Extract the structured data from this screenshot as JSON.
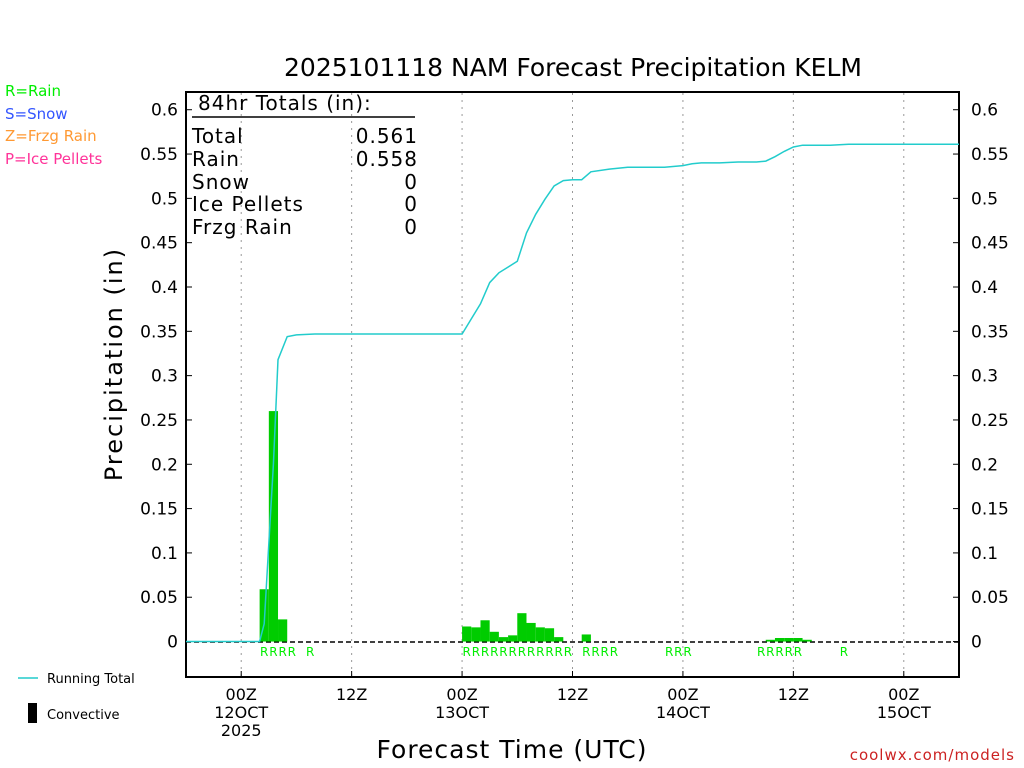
{
  "title": "2025101118 NAM Forecast Precipitation KELM",
  "ylabel": "Precipitation (in)",
  "xlabel": "Forecast Time (UTC)",
  "watermark": "coolwx.com/models",
  "legend_types": [
    {
      "text": "R=Rain",
      "color": "#00ee00"
    },
    {
      "text": "S=Snow",
      "color": "#3355ff"
    },
    {
      "text": "Z=Frzg Rain",
      "color": "#ff9933"
    },
    {
      "text": "P=Ice Pellets",
      "color": "#ff3399"
    }
  ],
  "legend_bottom": {
    "running_total": "Running Total",
    "convective": "Convective"
  },
  "totals": {
    "header": "84hr Totals (in):",
    "rows": [
      {
        "label": "Total",
        "value": "0.561"
      },
      {
        "label": "Rain",
        "value": "0.558"
      },
      {
        "label": "Snow",
        "value": "0"
      },
      {
        "label": "Ice Pellets",
        "value": "0"
      },
      {
        "label": "Frzg Rain",
        "value": "0"
      }
    ]
  },
  "colors": {
    "running_total": "#22cccc",
    "bars": "#00cc00",
    "ptype": "#00ee00",
    "watermark": "#cc2222"
  },
  "chart_data": {
    "type": "bar",
    "title": "2025101118 NAM Forecast Precipitation KELM",
    "xlabel": "Forecast Time (UTC)",
    "ylabel": "Precipitation (in)",
    "x_unit": "forecast hour",
    "xlim": [
      0,
      84
    ],
    "ylim": [
      -0.04,
      0.62
    ],
    "yticks": [
      "0",
      "0.05",
      "0.1",
      "0.15",
      "0.2",
      "0.25",
      "0.3",
      "0.35",
      "0.4",
      "0.45",
      "0.5",
      "0.55",
      "0.6"
    ],
    "xticks": [
      {
        "hour": 6,
        "lines": [
          "00Z",
          "12OCT",
          "2025"
        ]
      },
      {
        "hour": 18,
        "lines": [
          "12Z"
        ]
      },
      {
        "hour": 30,
        "lines": [
          "00Z",
          "13OCT"
        ]
      },
      {
        "hour": 42,
        "lines": [
          "12Z"
        ]
      },
      {
        "hour": 54,
        "lines": [
          "00Z",
          "14OCT"
        ]
      },
      {
        "hour": 66,
        "lines": [
          "12Z"
        ]
      },
      {
        "hour": 78,
        "lines": [
          "00Z",
          "15OCT"
        ]
      }
    ],
    "grid": "vertical dotted",
    "bars": [
      {
        "hour": 9,
        "value": 0.059
      },
      {
        "hour": 10,
        "value": 0.26
      },
      {
        "hour": 11,
        "value": 0.025
      },
      {
        "hour": 31,
        "value": 0.017
      },
      {
        "hour": 32,
        "value": 0.016
      },
      {
        "hour": 33,
        "value": 0.024
      },
      {
        "hour": 34,
        "value": 0.011
      },
      {
        "hour": 35,
        "value": 0.005
      },
      {
        "hour": 36,
        "value": 0.007
      },
      {
        "hour": 37,
        "value": 0.032
      },
      {
        "hour": 38,
        "value": 0.021
      },
      {
        "hour": 39,
        "value": 0.016
      },
      {
        "hour": 40,
        "value": 0.015
      },
      {
        "hour": 41,
        "value": 0.005
      },
      {
        "hour": 44,
        "value": 0.008
      },
      {
        "hour": 64,
        "value": 0.002
      },
      {
        "hour": 65,
        "value": 0.004
      },
      {
        "hour": 66,
        "value": 0.004
      },
      {
        "hour": 67,
        "value": 0.004
      },
      {
        "hour": 68,
        "value": 0.002
      }
    ],
    "running_total": {
      "x": [
        0,
        8,
        8.5,
        9.5,
        10,
        11,
        12,
        14,
        30,
        31,
        32,
        33,
        34,
        36,
        37,
        38,
        39,
        40,
        41,
        42,
        43,
        44,
        46,
        48,
        52,
        54,
        55,
        56,
        58,
        60,
        62,
        63,
        64,
        65,
        66,
        67,
        68,
        70,
        72,
        74,
        76,
        78,
        80,
        82,
        84
      ],
      "y": [
        0,
        0,
        0.02,
        0.2,
        0.318,
        0.344,
        0.346,
        0.347,
        0.347,
        0.364,
        0.381,
        0.405,
        0.416,
        0.429,
        0.461,
        0.482,
        0.499,
        0.514,
        0.52,
        0.521,
        0.521,
        0.53,
        0.533,
        0.535,
        0.535,
        0.537,
        0.539,
        0.54,
        0.54,
        0.541,
        0.541,
        0.542,
        0.547,
        0.553,
        0.558,
        0.56,
        0.56,
        0.56,
        0.561,
        0.561,
        0.561,
        0.561,
        0.561,
        0.561,
        0.561
      ]
    },
    "ptype_labels": [
      {
        "hour": 9,
        "text": "R"
      },
      {
        "hour": 10,
        "text": "R"
      },
      {
        "hour": 11,
        "text": "R"
      },
      {
        "hour": 12,
        "text": "R"
      },
      {
        "hour": 14,
        "text": "R"
      },
      {
        "hour": 31,
        "text": "R"
      },
      {
        "hour": 32,
        "text": "R"
      },
      {
        "hour": 33,
        "text": "R"
      },
      {
        "hour": 34,
        "text": "R"
      },
      {
        "hour": 35,
        "text": "R"
      },
      {
        "hour": 36,
        "text": "R"
      },
      {
        "hour": 37,
        "text": "R"
      },
      {
        "hour": 38,
        "text": "R"
      },
      {
        "hour": 39,
        "text": "R"
      },
      {
        "hour": 40,
        "text": "R"
      },
      {
        "hour": 41,
        "text": "R"
      },
      {
        "hour": 42,
        "text": "R"
      },
      {
        "hour": 44,
        "text": "R"
      },
      {
        "hour": 45,
        "text": "R"
      },
      {
        "hour": 46,
        "text": "R"
      },
      {
        "hour": 47,
        "text": "R"
      },
      {
        "hour": 53,
        "text": "R"
      },
      {
        "hour": 54,
        "text": "R"
      },
      {
        "hour": 55,
        "text": "R"
      },
      {
        "hour": 63,
        "text": "R"
      },
      {
        "hour": 64,
        "text": "R"
      },
      {
        "hour": 65,
        "text": "R"
      },
      {
        "hour": 66,
        "text": "R"
      },
      {
        "hour": 67,
        "text": "R"
      },
      {
        "hour": 72,
        "text": "R"
      }
    ]
  }
}
